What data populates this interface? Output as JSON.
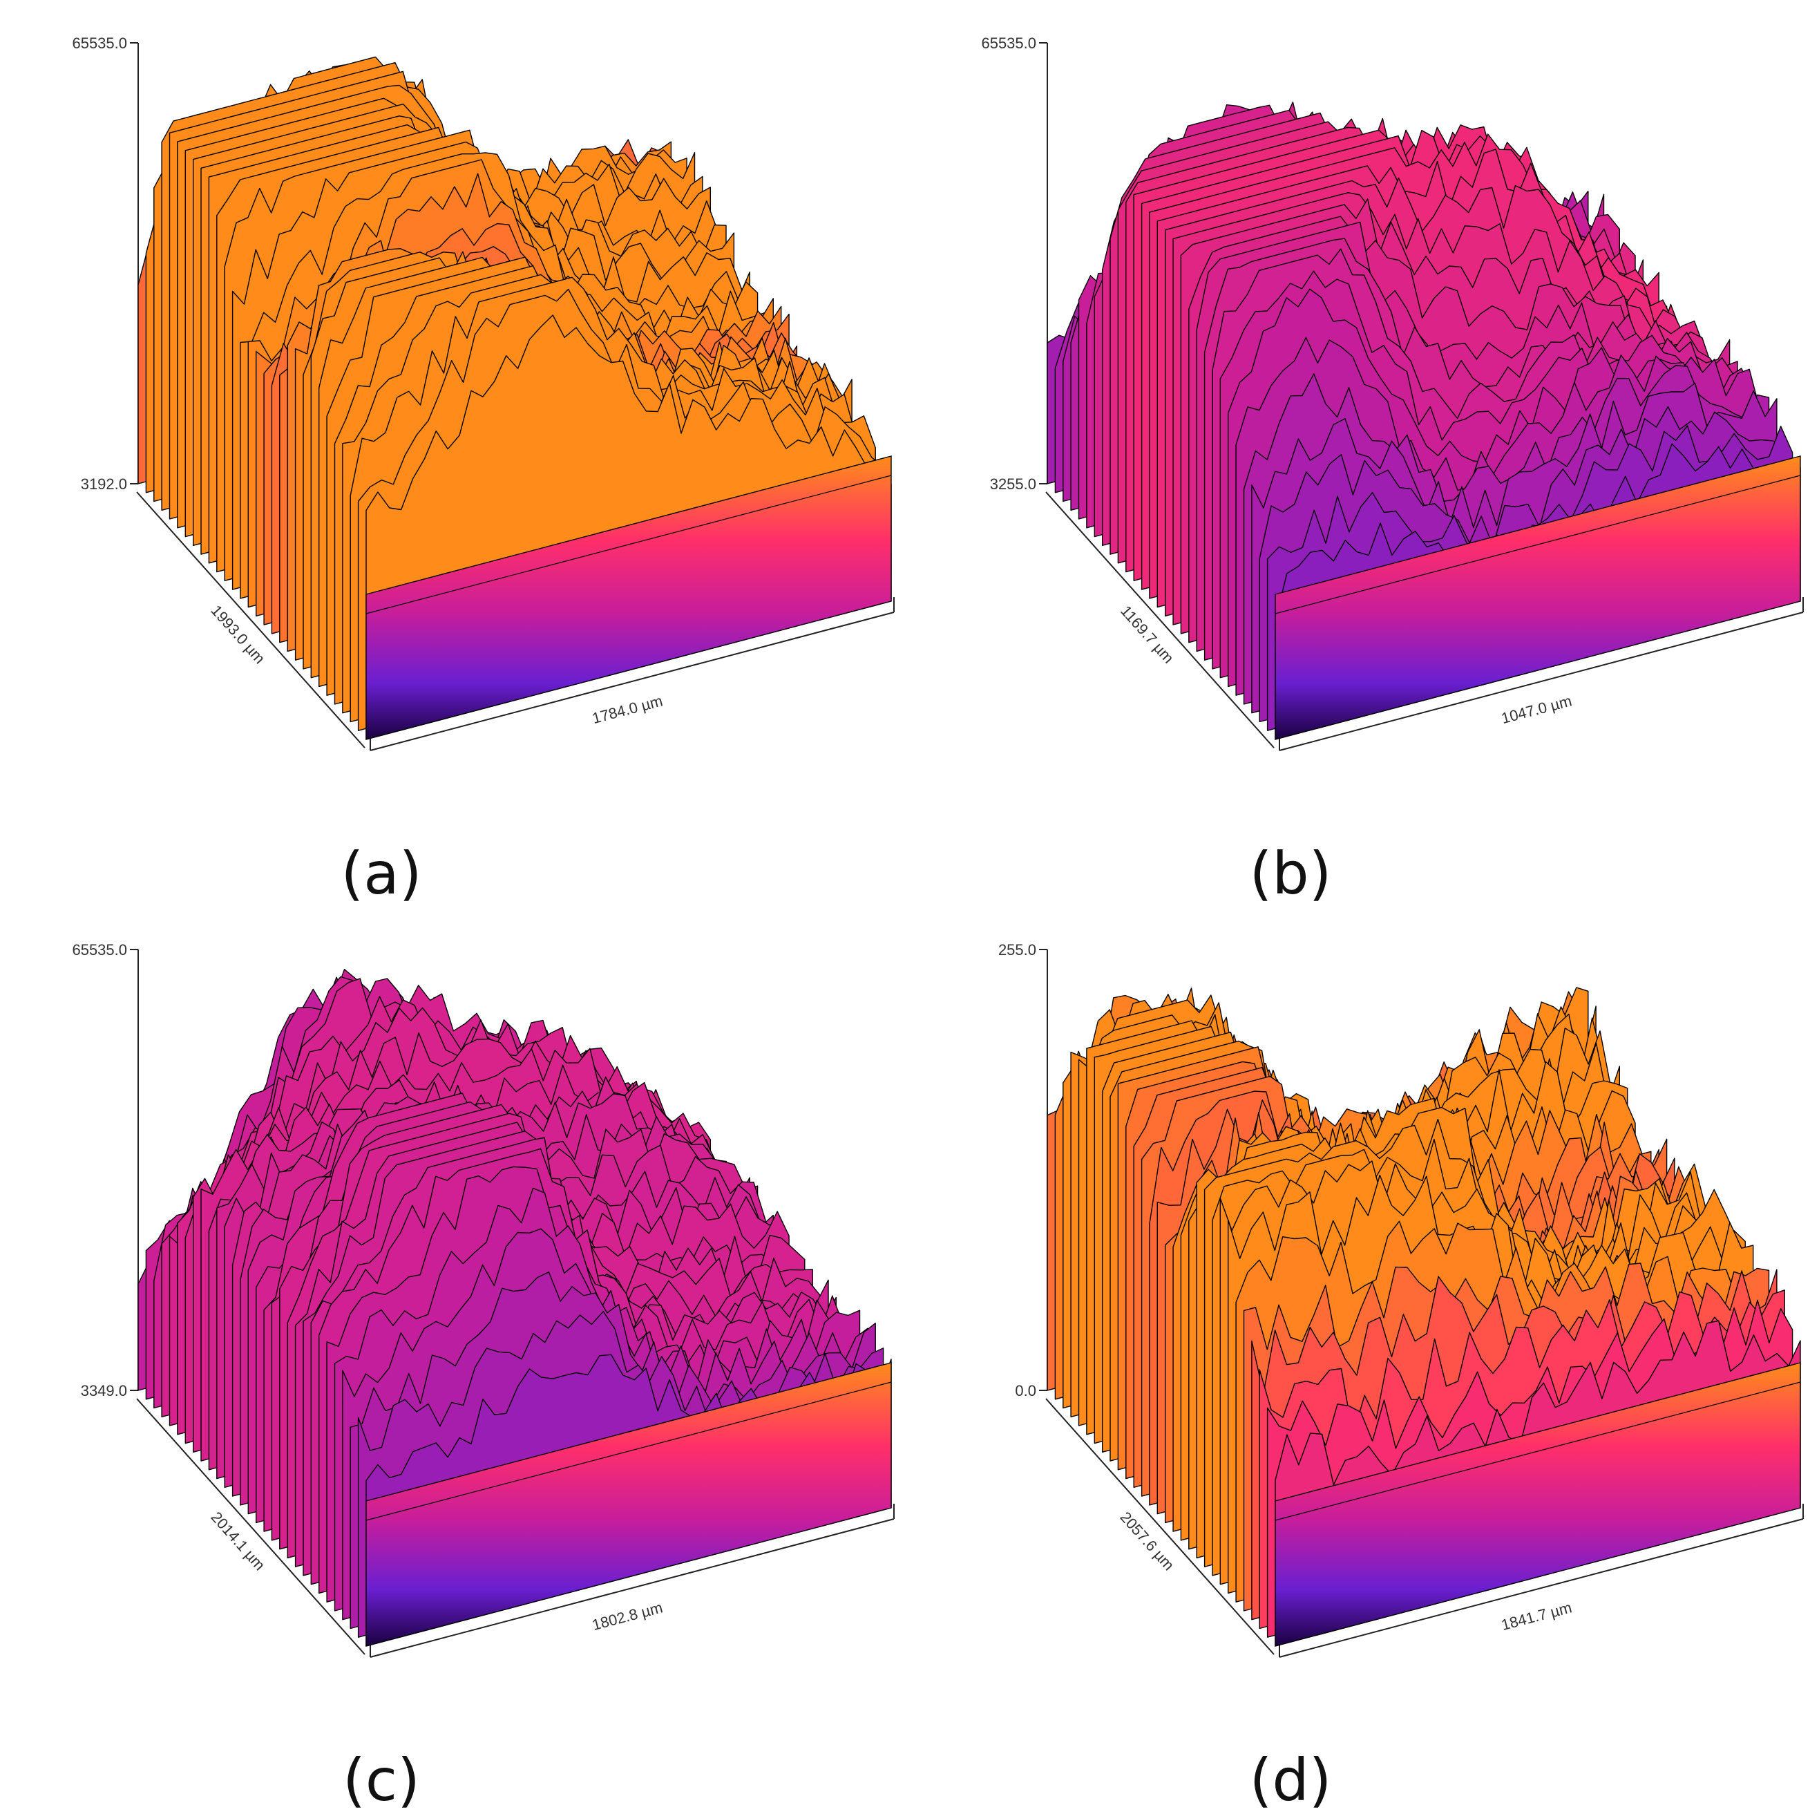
{
  "figure": {
    "panels": [
      {
        "id": "a",
        "caption": "(a)",
        "z_max": "65535.0",
        "z_min": "3192.0",
        "depth_label": "1993.0 µm",
        "width_label": "1784.0 µm",
        "palette": "warm"
      },
      {
        "id": "b",
        "caption": "(b)",
        "z_max": "65535.0",
        "z_min": "3255.0",
        "depth_label": "1169.7 µm",
        "width_label": "1047.0 µm",
        "palette": "cool"
      },
      {
        "id": "c",
        "caption": "(c)",
        "z_max": "65535.0",
        "z_min": "3349.0",
        "depth_label": "2014.1 µm",
        "width_label": "1802.8 µm",
        "palette": "cool"
      },
      {
        "id": "d",
        "caption": "(d)",
        "z_max": "255.0",
        "z_min": "0.0",
        "depth_label": "2057.6 µm",
        "width_label": "1841.7 µm",
        "palette": "hot"
      }
    ]
  },
  "chart_data": [
    {
      "type": "surface",
      "panel": "(a)",
      "z_range": [
        3192.0,
        65535.0
      ],
      "x_extent_um": 1784.0,
      "y_extent_um": 1993.0,
      "colormap": [
        "#1a0040",
        "#6a1fd0",
        "#c81e9a",
        "#ff2e6a",
        "#ff8c1a"
      ]
    },
    {
      "type": "surface",
      "panel": "(b)",
      "z_range": [
        3255.0,
        65535.0
      ],
      "x_extent_um": 1047.0,
      "y_extent_um": 1169.7,
      "colormap": [
        "#1a0040",
        "#6a1fd0",
        "#c81e9a",
        "#ff2e6a",
        "#ff8c1a"
      ]
    },
    {
      "type": "surface",
      "panel": "(c)",
      "z_range": [
        3349.0,
        65535.0
      ],
      "x_extent_um": 1802.8,
      "y_extent_um": 2014.1,
      "colormap": [
        "#1a0040",
        "#6a1fd0",
        "#c81e9a",
        "#ff2e6a",
        "#ff8c1a"
      ]
    },
    {
      "type": "surface",
      "panel": "(d)",
      "z_range": [
        0.0,
        255.0
      ],
      "x_extent_um": 1841.7,
      "y_extent_um": 2057.6,
      "colormap": [
        "#1a0040",
        "#6a1fd0",
        "#c81e9a",
        "#ff2e6a",
        "#ff8c1a"
      ]
    }
  ]
}
